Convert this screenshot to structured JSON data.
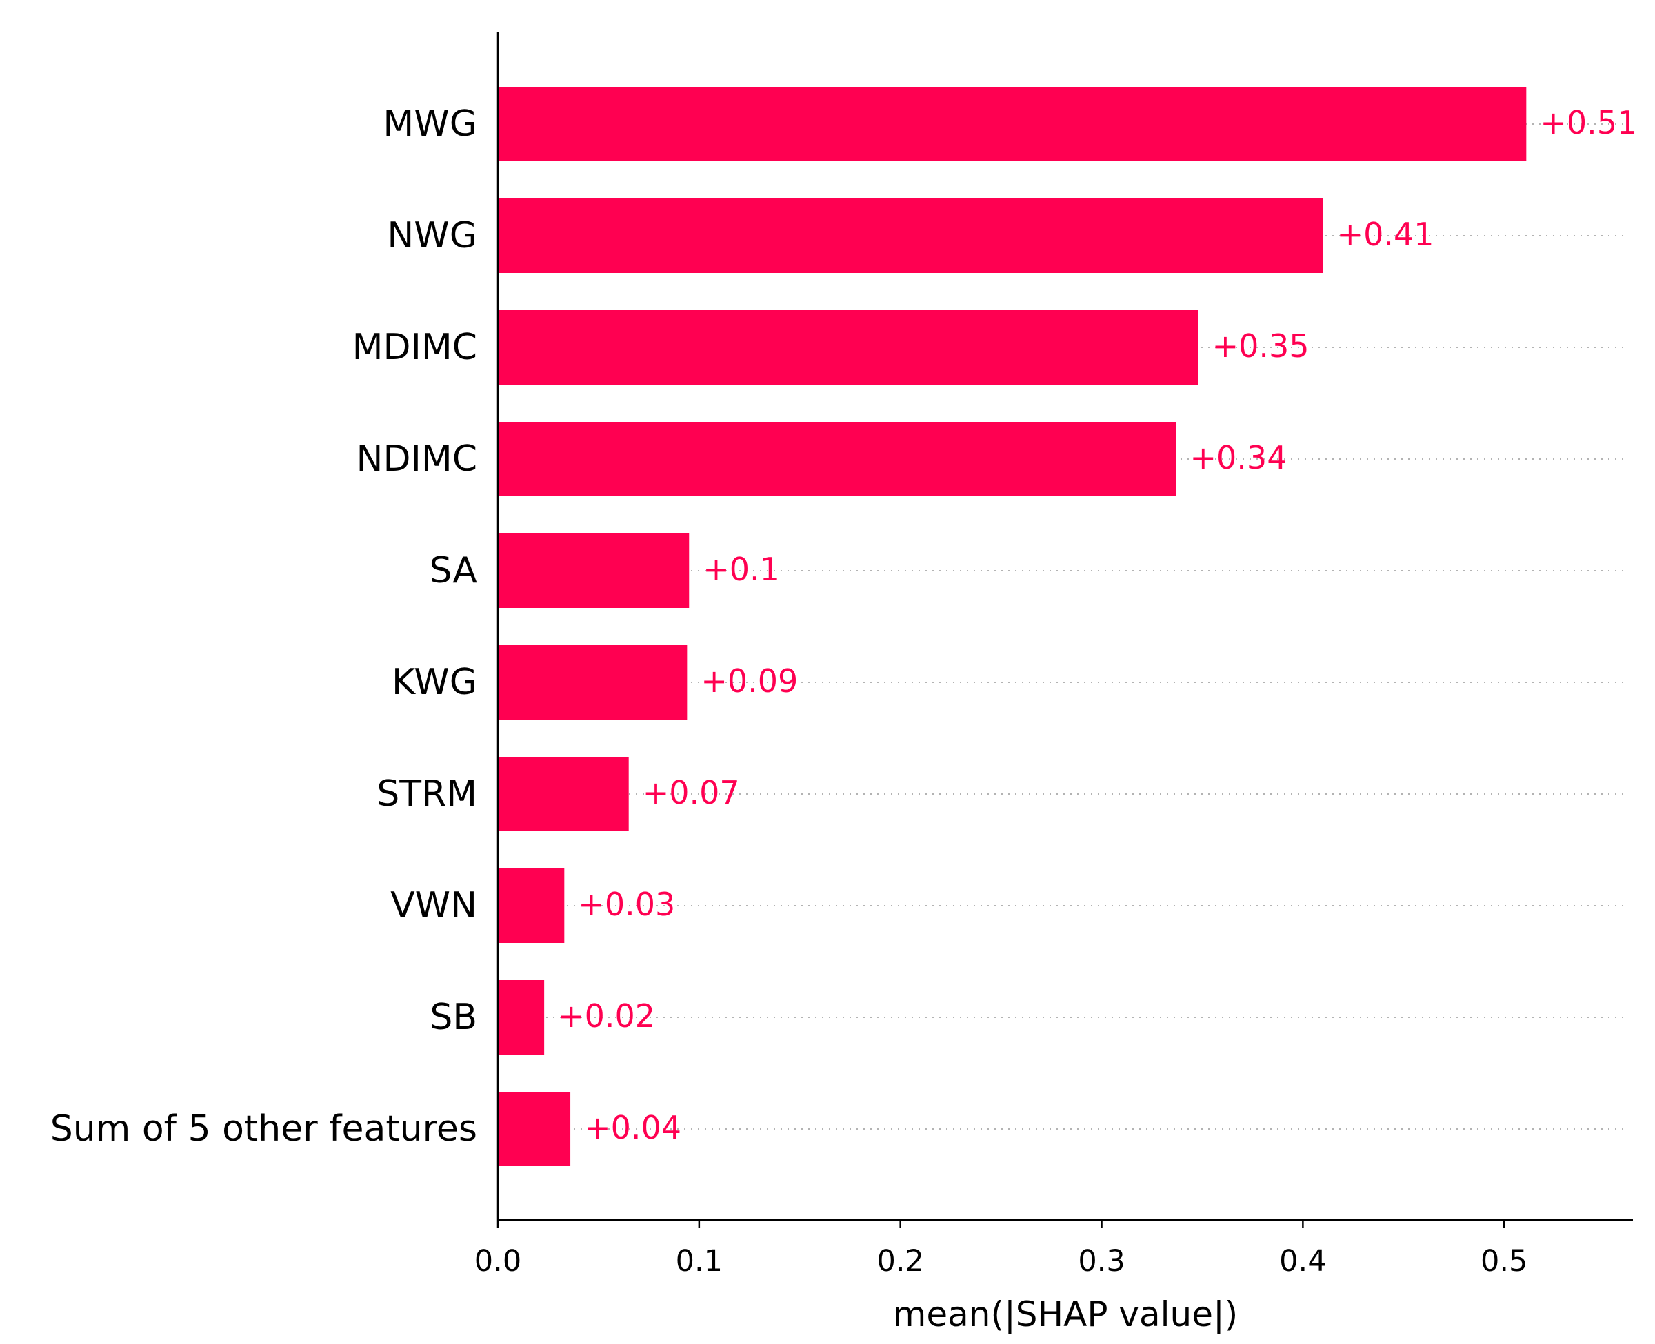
{
  "chart_data": {
    "type": "bar",
    "orientation": "horizontal",
    "categories": [
      "MWG",
      "NWG",
      "MDIMC",
      "NDIMC",
      "SA",
      "KWG",
      "STRM",
      "VWN",
      "SB",
      "Sum of 5 other features"
    ],
    "values": [
      0.511,
      0.41,
      0.348,
      0.337,
      0.095,
      0.094,
      0.065,
      0.033,
      0.023,
      0.036
    ],
    "value_labels": [
      "+0.51",
      "+0.41",
      "+0.35",
      "+0.34",
      "+0.1",
      "+0.09",
      "+0.07",
      "+0.03",
      "+0.02",
      "+0.04"
    ],
    "xlabel": "mean(|SHAP value|)",
    "ylabel": "",
    "xlim": [
      0,
      0.564
    ],
    "xticks": [
      0.0,
      0.1,
      0.2,
      0.3,
      0.4,
      0.5
    ],
    "xtick_labels": [
      "0.0",
      "0.1",
      "0.2",
      "0.3",
      "0.4",
      "0.5"
    ],
    "grid": "dotted gridline per bar",
    "legend": "none",
    "colors": {
      "bar": "#ff0051",
      "value_label": "#ff0051",
      "grid": "#b3b3b3",
      "axis": "#000000"
    }
  }
}
